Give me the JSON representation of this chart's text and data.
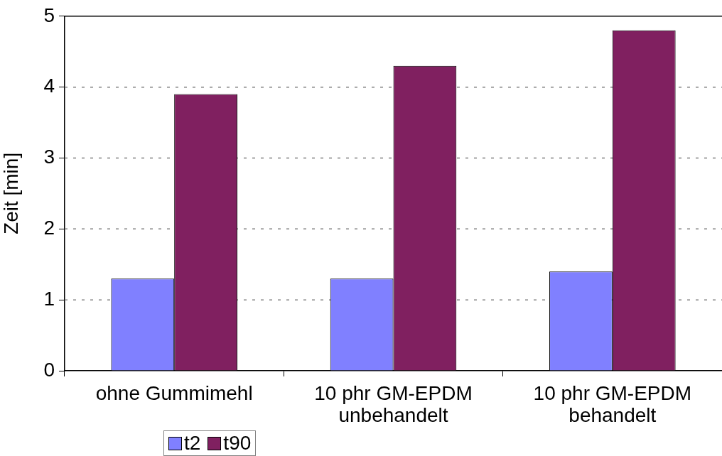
{
  "chart_data": {
    "type": "bar",
    "categories": [
      "ohne Gummimehl",
      "10 phr GM-EPDM unbehandelt",
      "10 phr GM-EPDM behandelt"
    ],
    "series": [
      {
        "name": "t2",
        "color": "#8080ff",
        "values": [
          1.3,
          1.3,
          1.4
        ]
      },
      {
        "name": "t90",
        "color": "#802060",
        "values": [
          3.9,
          4.3,
          4.8
        ]
      }
    ],
    "ylabel": "Zeit [min]",
    "ylim": [
      0,
      5
    ],
    "yticks": [
      0,
      1,
      2,
      3,
      4,
      5
    ],
    "grid": "y",
    "legend": "bottom left"
  }
}
